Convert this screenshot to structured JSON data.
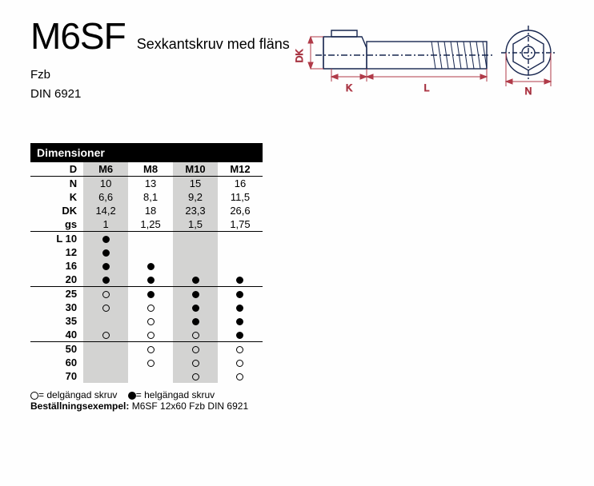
{
  "header": {
    "title": "M6SF",
    "subtitle": "Sexkantskruv med fläns",
    "meta1": "Fzb",
    "meta2": "DIN 6921"
  },
  "diagram": {
    "labels": {
      "DK": "DK",
      "K": "K",
      "L": "L",
      "N": "N"
    },
    "color": "#17264f",
    "dim_color": "#b03a48"
  },
  "dimensions": {
    "header": "Dimensioner",
    "D_label": "D",
    "sizes": [
      "M6",
      "M8",
      "M10",
      "M12"
    ],
    "rows_numeric": [
      {
        "label": "N",
        "vals": [
          "10",
          "13",
          "15",
          "16"
        ]
      },
      {
        "label": "K",
        "vals": [
          "6,6",
          "8,1",
          "9,2",
          "11,5"
        ]
      },
      {
        "label": "DK",
        "vals": [
          "14,2",
          "18",
          "23,3",
          "26,6"
        ]
      },
      {
        "label": "gs",
        "vals": [
          "1",
          "1,25",
          "1,5",
          "1,75"
        ]
      }
    ],
    "rows_avail": [
      {
        "label": "L 10",
        "marks": [
          "F",
          "",
          "",
          ""
        ]
      },
      {
        "label": "12",
        "marks": [
          "F",
          "",
          "",
          ""
        ]
      },
      {
        "label": "16",
        "marks": [
          "F",
          "F",
          "",
          ""
        ]
      },
      {
        "label": "20",
        "marks": [
          "F",
          "F",
          "F",
          "F"
        ],
        "sep": true
      },
      {
        "label": "25",
        "marks": [
          "O",
          "F",
          "F",
          "F"
        ]
      },
      {
        "label": "30",
        "marks": [
          "O",
          "O",
          "F",
          "F"
        ]
      },
      {
        "label": "35",
        "marks": [
          "",
          "O",
          "F",
          "F"
        ]
      },
      {
        "label": "40",
        "marks": [
          "O",
          "O",
          "O",
          "F"
        ],
        "sep": true
      },
      {
        "label": "50",
        "marks": [
          "",
          "O",
          "O",
          "O"
        ]
      },
      {
        "label": "60",
        "marks": [
          "",
          "O",
          "O",
          "O"
        ]
      },
      {
        "label": "70",
        "marks": [
          "",
          "",
          "O",
          "O"
        ]
      }
    ]
  },
  "legend": {
    "open": "= delgängad skruv",
    "filled": "= helgängad skruv",
    "order_label": "Beställningsexempel:",
    "order_example": "M6SF 12x60 Fzb DIN 6921"
  }
}
